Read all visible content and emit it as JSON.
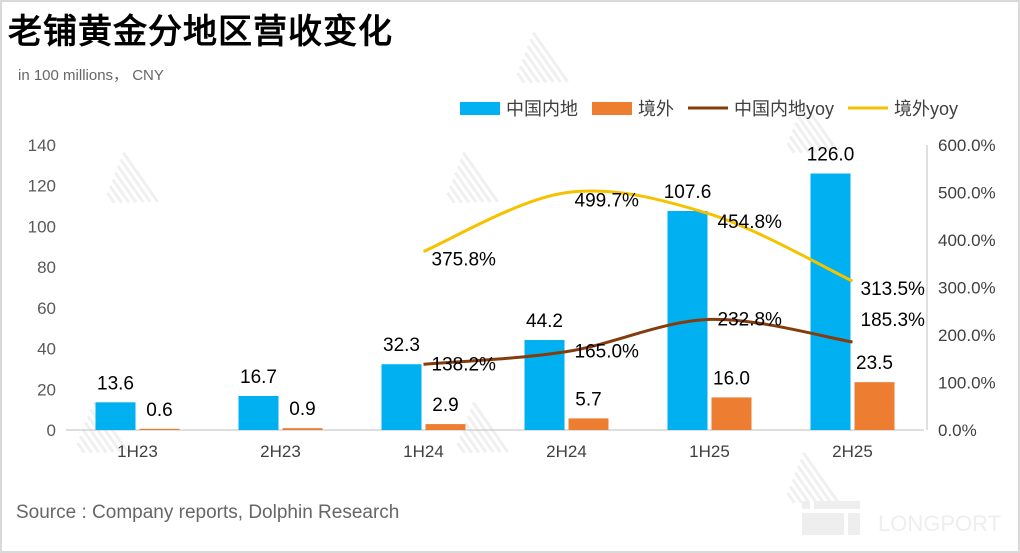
{
  "title": "老铺黄金分地区营收变化",
  "unit_note": "in 100 millions， CNY",
  "source": "Source : Company reports, Dolphin Research",
  "watermark": "DolphinResearch",
  "logo_text": "LONGPORT",
  "chart_data": {
    "type": "bar",
    "categories": [
      "1H23",
      "2H23",
      "1H24",
      "2H24",
      "1H25",
      "2H25"
    ],
    "series": [
      {
        "name": "中国内地",
        "kind": "bar",
        "axis": "left",
        "color": "#00B0F0",
        "values": [
          13.6,
          16.7,
          32.3,
          44.2,
          107.6,
          126.0
        ],
        "labels": [
          "13.6",
          "16.7",
          "32.3",
          "44.2",
          "107.6",
          "126.0"
        ]
      },
      {
        "name": "境外",
        "kind": "bar",
        "axis": "left",
        "color": "#ED7D31",
        "values": [
          0.6,
          0.9,
          2.9,
          5.7,
          16.0,
          23.5
        ],
        "labels": [
          "0.6",
          "0.9",
          "2.9",
          "5.7",
          "16.0",
          "23.5"
        ]
      },
      {
        "name": "中国内地yoy",
        "kind": "line",
        "axis": "right",
        "color": "#843C0C",
        "values": [
          null,
          null,
          138.2,
          165.0,
          232.8,
          185.3
        ],
        "labels": [
          "",
          "",
          "138.2%",
          "165.0%",
          "232.8%",
          "185.3%"
        ]
      },
      {
        "name": "境外yoy",
        "kind": "line",
        "axis": "right",
        "color": "#F5C200",
        "values": [
          null,
          null,
          375.8,
          499.7,
          454.8,
          313.5
        ],
        "labels": [
          "",
          "",
          "375.8%",
          "499.7%",
          "454.8%",
          "313.5%"
        ]
      }
    ],
    "ylim": [
      0,
      140
    ],
    "yticks": [
      "0",
      "20",
      "40",
      "60",
      "80",
      "100",
      "120",
      "140"
    ],
    "y2lim": [
      0,
      600
    ],
    "y2ticks": [
      "0.0%",
      "100.0%",
      "200.0%",
      "300.0%",
      "400.0%",
      "500.0%",
      "600.0%"
    ],
    "legend_position": "top-right",
    "grid": false
  }
}
